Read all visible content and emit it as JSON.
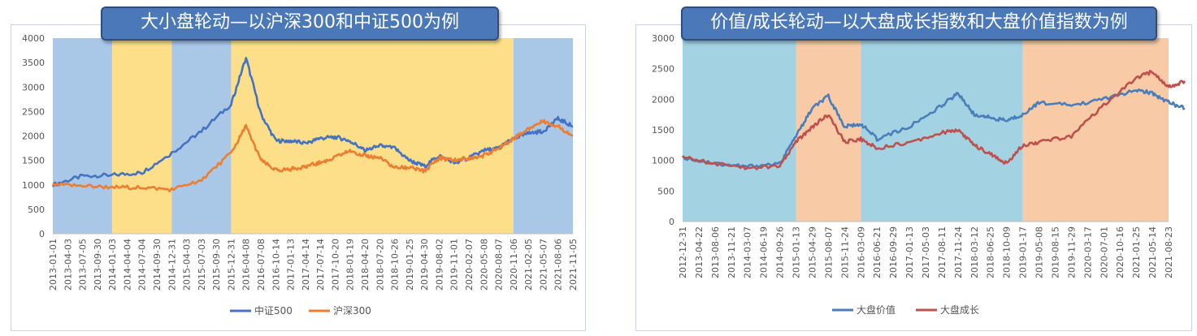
{
  "charts": [
    {
      "title": "大小盘轮动—以沪深300和中证500为例",
      "chart_data": {
        "type": "line",
        "ylim": [
          0,
          4000
        ],
        "yticks": [
          0,
          500,
          1000,
          1500,
          2000,
          2500,
          3000,
          3500,
          4000
        ],
        "x_ticks": [
          "2013-01-01",
          "2013-04-03",
          "2013-07-05",
          "2013-09-30",
          "2014-01-03",
          "2014-04-04",
          "2014-07-04",
          "2014-09-30",
          "2014-12-31",
          "2015-04-03",
          "2015-07-03",
          "2015-09-30",
          "2015-12-31",
          "2016-04-08",
          "2016-07-08",
          "2016-10-14",
          "2017-01-13",
          "2017-04-14",
          "2017-07-14",
          "2017-10-20",
          "2018-01-19",
          "2018-04-20",
          "2018-07-20",
          "2018-10-26",
          "2019-01-25",
          "2019-04-30",
          "2019-08-02",
          "2019-11-01",
          "2020-02-07",
          "2020-05-08",
          "2020-08-07",
          "2020-11-06",
          "2021-02-05",
          "2021-05-07",
          "2021-08-06",
          "2021-11-05"
        ],
        "regimes": [
          {
            "from": "2013-01-01",
            "to": "2014-01-03",
            "color": "#a9c8e8"
          },
          {
            "from": "2014-01-03",
            "to": "2014-12-31",
            "color": "#fddf8a"
          },
          {
            "from": "2014-12-31",
            "to": "2015-12-31",
            "color": "#a9c8e8"
          },
          {
            "from": "2015-12-31",
            "to": "2020-11-06",
            "color": "#fddf8a"
          },
          {
            "from": "2020-11-06",
            "to": "2021-11-05",
            "color": "#a9c8e8"
          }
        ],
        "series": [
          {
            "name": "中证500",
            "color": "#4472c4",
            "x": [
              0,
              2,
              4,
              6,
              8,
              10,
              12,
              13,
              14,
              15,
              16,
              17,
              18,
              19,
              20,
              21,
              22,
              23,
              24,
              25,
              26,
              27,
              28,
              29,
              30,
              31,
              32,
              33,
              34,
              35
            ],
            "values": [
              1000,
              1180,
              1200,
              1250,
              1650,
              2100,
              2650,
              3600,
              2450,
              1900,
              1900,
              1850,
              1950,
              1980,
              1900,
              1700,
              1800,
              1750,
              1500,
              1380,
              1600,
              1450,
              1550,
              1700,
              1750,
              1950,
              2050,
              2100,
              2350,
              2200
            ]
          },
          {
            "name": "沪深300",
            "color": "#ed7d31",
            "x": [
              0,
              2,
              4,
              6,
              8,
              10,
              12,
              13,
              14,
              15,
              16,
              17,
              18,
              19,
              20,
              21,
              22,
              23,
              24,
              25,
              26,
              27,
              28,
              29,
              30,
              31,
              32,
              33,
              34,
              35
            ],
            "values": [
              1000,
              980,
              950,
              950,
              900,
              1100,
              1650,
              2200,
              1500,
              1300,
              1320,
              1380,
              1450,
              1560,
              1700,
              1600,
              1550,
              1350,
              1350,
              1280,
              1550,
              1500,
              1550,
              1600,
              1750,
              1950,
              2150,
              2300,
              2200,
              2000
            ]
          }
        ],
        "legend_position": "bottom"
      }
    },
    {
      "title": "价值/成长轮动—以大盘成长指数和大盘价值指数为例",
      "chart_data": {
        "type": "line",
        "ylim": [
          0,
          3000
        ],
        "yticks": [
          0,
          500,
          1000,
          1500,
          2000,
          2500,
          3000
        ],
        "x_ticks": [
          "2012-12-31",
          "2013-04-22",
          "2013-08-06",
          "2013-11-21",
          "2014-03-07",
          "2014-06-19",
          "2014-09-26",
          "2015-01-13",
          "2015-04-29",
          "2015-08-07",
          "2015-11-24",
          "2016-03-09",
          "2016-06-21",
          "2016-09-29",
          "2017-01-13",
          "2017-05-03",
          "2017-08-11",
          "2017-11-24",
          "2018-03-12",
          "2018-06-25",
          "2018-10-09",
          "2019-01-17",
          "2019-05-08",
          "2019-08-15",
          "2019-11-29",
          "2020-03-17",
          "2020-07-01",
          "2020-10-16",
          "2021-01-25",
          "2021-05-14",
          "2021-08-23"
        ],
        "regimes": [
          {
            "from": "2012-12-31",
            "to": "2015-01-13",
            "color": "#a3d2e2"
          },
          {
            "from": "2015-01-13",
            "to": "2016-03-09",
            "color": "#f8caa6"
          },
          {
            "from": "2016-03-09",
            "to": "2019-01-17",
            "color": "#a3d2e2"
          },
          {
            "from": "2019-01-17",
            "to": "2021-08-23",
            "color": "#f8caa6"
          }
        ],
        "series": [
          {
            "name": "大盘价值",
            "color": "#4a7ebb",
            "x": [
              0,
              2,
              4,
              6,
              7,
              8,
              9,
              10,
              11,
              12,
              14,
              16,
              17,
              18,
              19,
              20,
              21,
              22,
              24,
              26,
              28,
              29,
              30,
              31
            ],
            "values": [
              1050,
              950,
              900,
              950,
              1400,
              1850,
              2050,
              1550,
              1600,
              1350,
              1550,
              1900,
              2100,
              1750,
              1700,
              1650,
              1750,
              1950,
              1900,
              2000,
              2150,
              2100,
              1950,
              1850
            ]
          },
          {
            "name": "大盘成长",
            "color": "#c0504d",
            "x": [
              0,
              2,
              4,
              6,
              7,
              8,
              9,
              10,
              11,
              12,
              14,
              16,
              17,
              18,
              19,
              20,
              21,
              22,
              24,
              26,
              28,
              29,
              30,
              31
            ],
            "values": [
              1050,
              950,
              880,
              900,
              1300,
              1550,
              1750,
              1300,
              1350,
              1200,
              1300,
              1450,
              1500,
              1250,
              1100,
              950,
              1250,
              1300,
              1400,
              1900,
              2350,
              2450,
              2200,
              2300
            ]
          }
        ],
        "legend_position": "bottom"
      }
    }
  ]
}
